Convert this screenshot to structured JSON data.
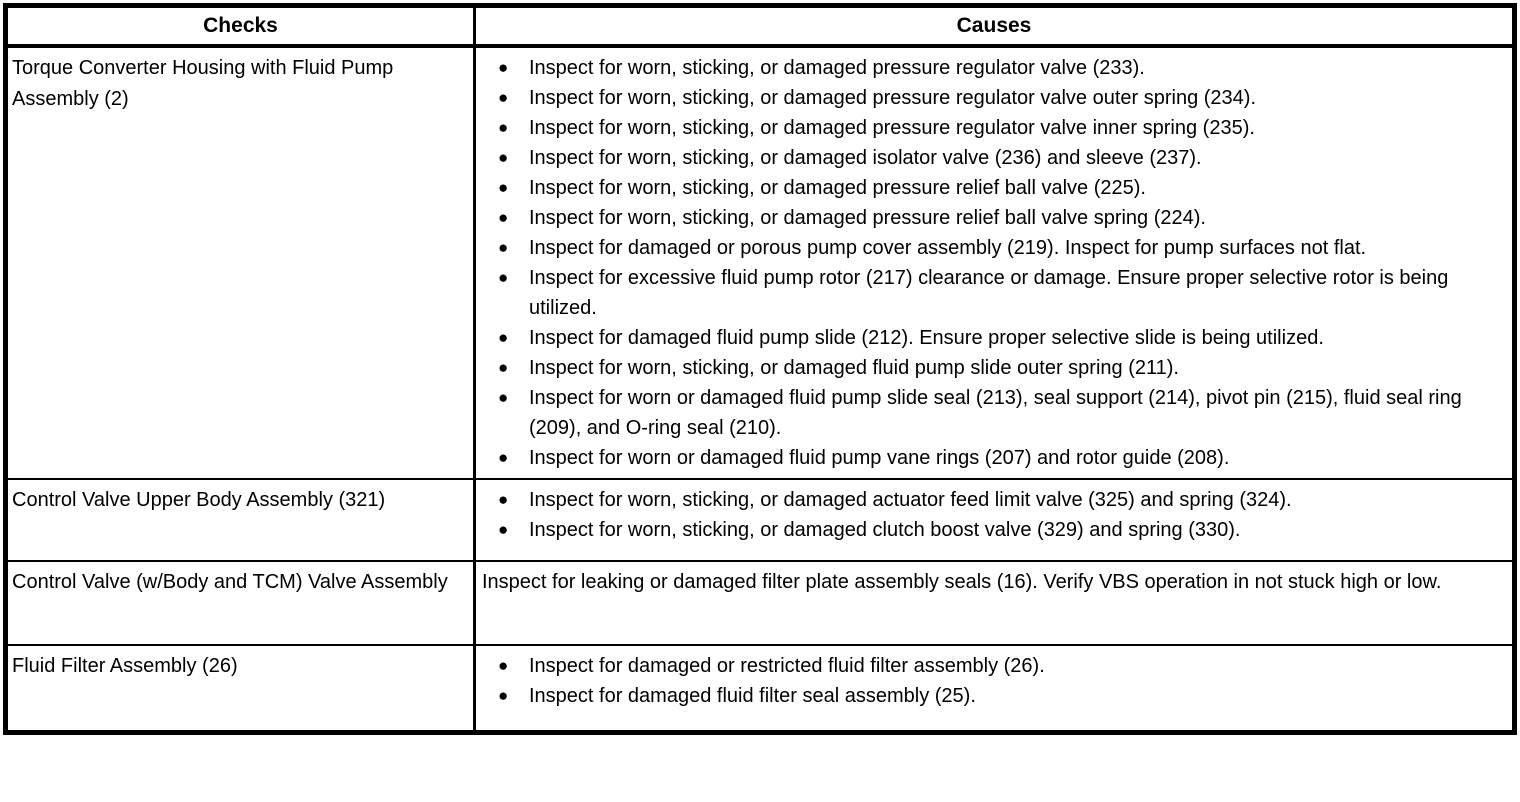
{
  "table": {
    "headers": [
      {
        "label": "Checks"
      },
      {
        "label": "Causes"
      }
    ],
    "icons": {
      "bullet": "●"
    },
    "colors": {
      "text": "#000000",
      "border": "#000000",
      "background": "#ffffff"
    },
    "rows": [
      {
        "check": "Torque Converter Housing with Fluid Pump Assembly (2)",
        "causes": [
          {
            "bullet": true,
            "text": "Inspect for worn, sticking, or damaged pressure regulator valve (233)."
          },
          {
            "bullet": true,
            "text": "Inspect for worn, sticking, or damaged pressure regulator valve outer spring (234)."
          },
          {
            "bullet": true,
            "text": "Inspect for worn, sticking, or damaged pressure regulator valve inner spring (235)."
          },
          {
            "bullet": true,
            "text": "Inspect for worn, sticking, or damaged isolator valve (236) and sleeve (237)."
          },
          {
            "bullet": true,
            "text": "Inspect for worn, sticking, or damaged pressure relief ball valve (225)."
          },
          {
            "bullet": true,
            "text": "Inspect for worn, sticking, or damaged pressure relief ball valve spring (224)."
          },
          {
            "bullet": true,
            "text": "Inspect for damaged or porous pump cover assembly (219). Inspect for pump surfaces not flat."
          },
          {
            "bullet": true,
            "text": "Inspect for excessive fluid pump rotor (217) clearance or damage. Ensure proper selective rotor is being utilized."
          },
          {
            "bullet": true,
            "text": "Inspect for damaged fluid pump slide (212). Ensure proper selective slide is being utilized."
          },
          {
            "bullet": true,
            "text": "Inspect for worn, sticking, or damaged fluid pump slide outer spring (211)."
          },
          {
            "bullet": true,
            "text": "Inspect for worn or damaged fluid pump slide seal (213), seal support (214), pivot pin (215), fluid seal ring (209), and O-ring seal (210)."
          },
          {
            "bullet": true,
            "text": "Inspect for worn or damaged fluid pump vane rings (207) and rotor guide (208)."
          }
        ]
      },
      {
        "check": "Control Valve Upper Body Assembly (321)",
        "causes": [
          {
            "bullet": true,
            "text": "Inspect for worn, sticking, or damaged actuator feed limit valve (325) and spring (324)."
          },
          {
            "bullet": true,
            "text": "Inspect for worn, sticking, or damaged clutch boost valve (329) and spring (330)."
          }
        ]
      },
      {
        "check": "Control Valve (w/Body and TCM) Valve Assembly",
        "causes": [
          {
            "bullet": false,
            "text": "Inspect for leaking or damaged filter plate assembly seals (16). Verify VBS operation in not stuck high or low."
          }
        ]
      },
      {
        "check": "Fluid Filter Assembly (26)",
        "causes": [
          {
            "bullet": true,
            "text": "Inspect for damaged or restricted fluid filter assembly (26)."
          },
          {
            "bullet": true,
            "text": "Inspect for damaged fluid filter seal assembly (25)."
          }
        ]
      }
    ]
  }
}
